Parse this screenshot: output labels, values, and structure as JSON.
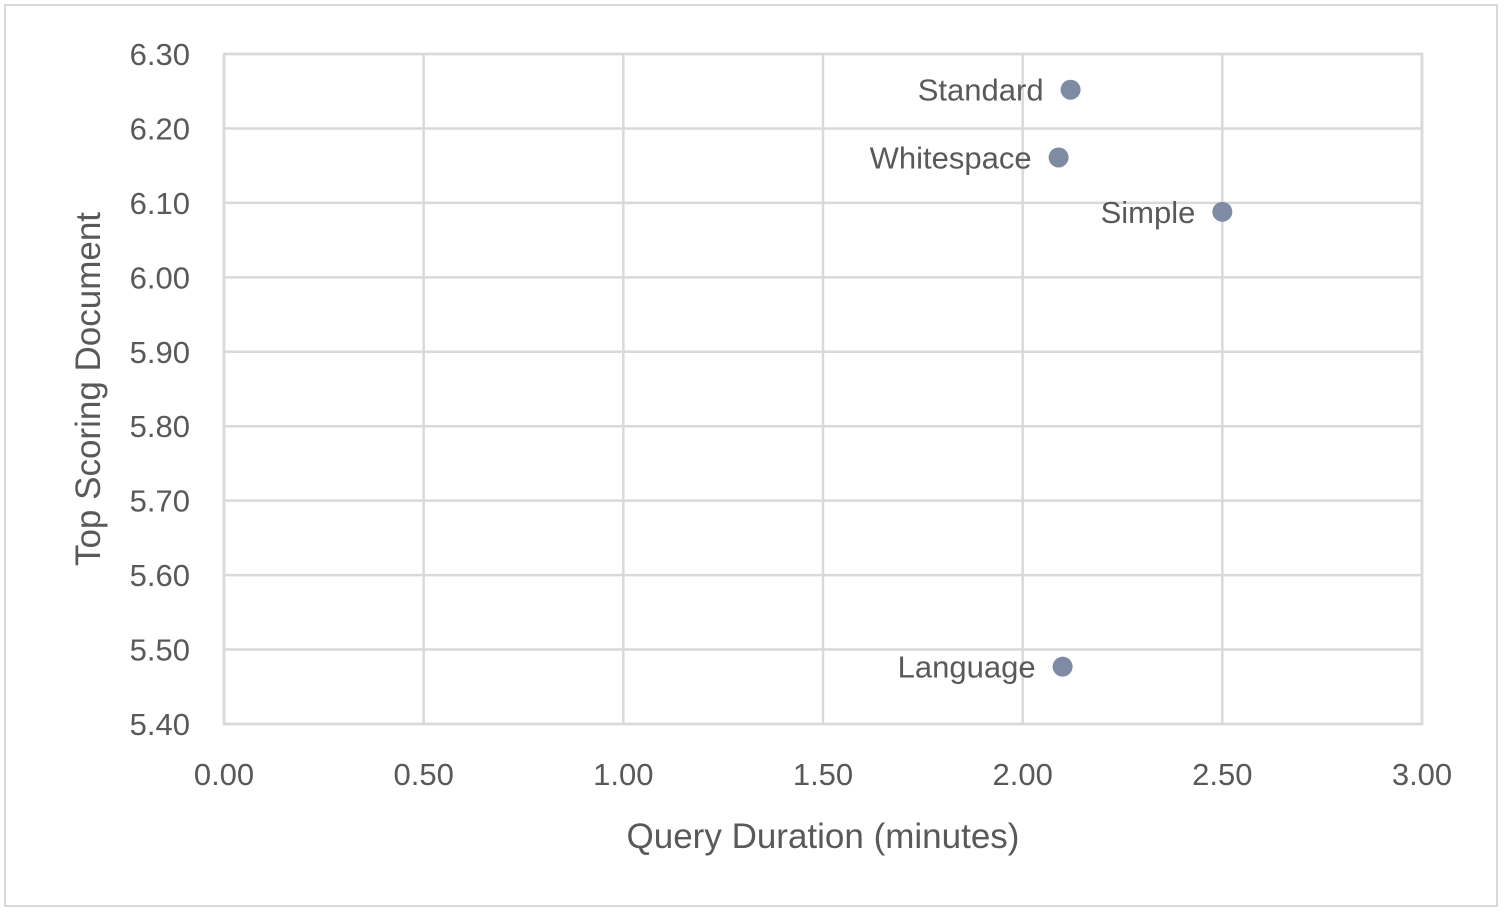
{
  "chart_data": {
    "type": "scatter",
    "title": "",
    "xlabel": "Query Duration (minutes)",
    "ylabel": "Top Scoring Document",
    "xlim": [
      0,
      3
    ],
    "ylim": [
      5.4,
      6.3
    ],
    "grid": true,
    "legend": "none",
    "marker_color": "#7f8ba3",
    "x_ticks": [
      0,
      0.5,
      1.0,
      1.5,
      2.0,
      2.5,
      3.0
    ],
    "x_tick_labels": [
      "0.00",
      "0.50",
      "1.00",
      "1.50",
      "2.00",
      "2.50",
      "3.00"
    ],
    "y_ticks": [
      5.4,
      5.5,
      5.6,
      5.7,
      5.8,
      5.9,
      6.0,
      6.1,
      6.2,
      6.3
    ],
    "y_tick_labels": [
      "5.40",
      "5.50",
      "5.60",
      "5.70",
      "5.80",
      "5.90",
      "6.00",
      "6.10",
      "6.20",
      "6.30"
    ],
    "points": [
      {
        "label": "Standard",
        "x": 2.12,
        "y": 6.252
      },
      {
        "label": "Whitespace",
        "x": 2.09,
        "y": 6.161
      },
      {
        "label": "Simple",
        "x": 2.5,
        "y": 6.088
      },
      {
        "label": "Language",
        "x": 2.1,
        "y": 5.477
      }
    ]
  }
}
